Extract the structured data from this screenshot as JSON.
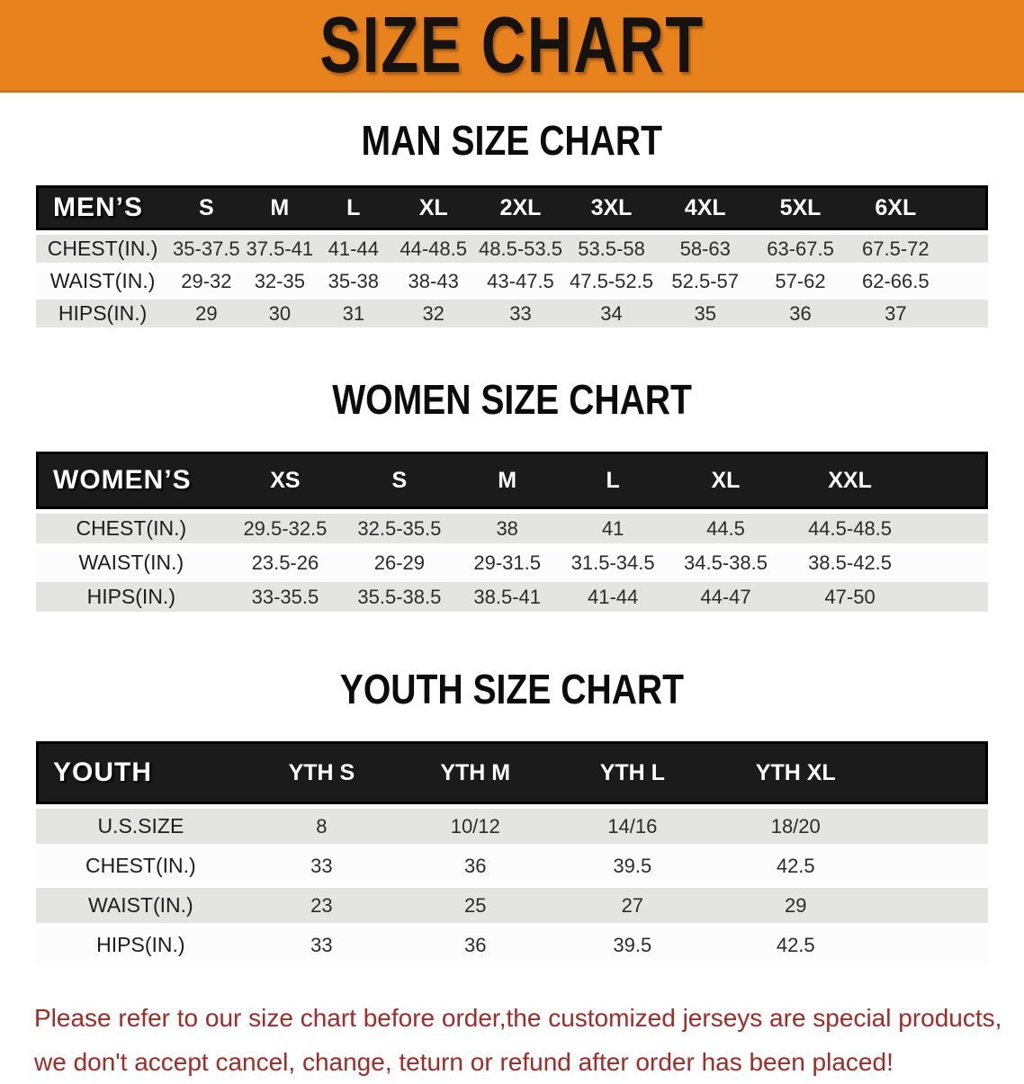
{
  "banner": {
    "title": "SIZE CHART",
    "bg_color": "#e8821c",
    "text_color": "#151310"
  },
  "sections": [
    {
      "heading": "MAN SIZE CHART",
      "table": {
        "name": "men",
        "label": "MEN’S",
        "columns": [
          "S",
          "M",
          "L",
          "XL",
          "2XL",
          "3XL",
          "4XL",
          "5XL",
          "6XL"
        ],
        "rows": [
          {
            "label": "CHEST(IN.)",
            "values": [
              "35-37.5",
              "37.5-41",
              "41-44",
              "44-48.5",
              "48.5-53.5",
              "53.5-58",
              "58-63",
              "63-67.5",
              "67.5-72"
            ]
          },
          {
            "label": "WAIST(IN.)",
            "values": [
              "29-32",
              "32-35",
              "35-38",
              "38-43",
              "43-47.5",
              "47.5-52.5",
              "52.5-57",
              "57-62",
              "62-66.5"
            ]
          },
          {
            "label": "HIPS(IN.)",
            "values": [
              "29",
              "30",
              "31",
              "32",
              "33",
              "34",
              "35",
              "36",
              "37"
            ]
          }
        ]
      }
    },
    {
      "heading": "WOMEN SIZE CHART",
      "table": {
        "name": "women",
        "label": "WOMEN’S",
        "columns": [
          "XS",
          "S",
          "M",
          "L",
          "XL",
          "XXL"
        ],
        "rows": [
          {
            "label": "CHEST(IN.)",
            "values": [
              "29.5-32.5",
              "32.5-35.5",
              "38",
              "41",
              "44.5",
              "44.5-48.5"
            ]
          },
          {
            "label": "WAIST(IN.)",
            "values": [
              "23.5-26",
              "26-29",
              "29-31.5",
              "31.5-34.5",
              "34.5-38.5",
              "38.5-42.5"
            ]
          },
          {
            "label": "HIPS(IN.)",
            "values": [
              "33-35.5",
              "35.5-38.5",
              "38.5-41",
              "41-44",
              "44-47",
              "47-50"
            ]
          }
        ]
      }
    },
    {
      "heading": "YOUTH SIZE CHART",
      "table": {
        "name": "youth",
        "label": "YOUTH",
        "columns": [
          "YTH S",
          "YTH M",
          "YTH L",
          "YTH XL"
        ],
        "rows": [
          {
            "label": "U.S.SIZE",
            "values": [
              "8",
              "10/12",
              "14/16",
              "18/20"
            ]
          },
          {
            "label": "CHEST(IN.)",
            "values": [
              "33",
              "36",
              "39.5",
              "42.5"
            ]
          },
          {
            "label": "WAIST(IN.)",
            "values": [
              "23",
              "25",
              "27",
              "29"
            ]
          },
          {
            "label": "HIPS(IN.)",
            "values": [
              "33",
              "36",
              "39.5",
              "42.5"
            ]
          }
        ]
      }
    }
  ],
  "footer": {
    "color": "#a52a23",
    "lines": [
      "Please refer to our size chart before order,the customized jerseys are special products,",
      "we don't accept cancel, change, teturn or refund after order has been placed!"
    ]
  }
}
